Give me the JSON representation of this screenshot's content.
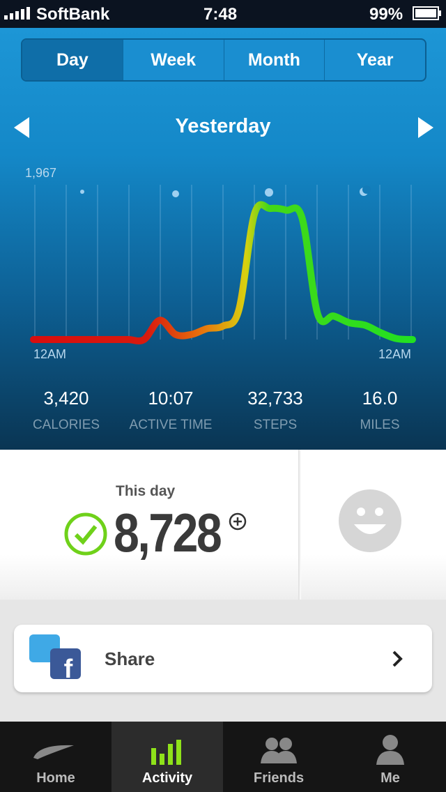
{
  "status_bar": {
    "carrier": "SoftBank",
    "time": "7:48",
    "battery": "99%"
  },
  "tabs": [
    "Day",
    "Week",
    "Month",
    "Year"
  ],
  "date_label": "Yesterday",
  "chart": {
    "type": "line",
    "max_label": "1,967",
    "ylim": [
      0,
      1967
    ],
    "x_labels": [
      "12AM",
      "12AM"
    ],
    "values": [
      0,
      0,
      0,
      0,
      0,
      0,
      0,
      0,
      230,
      60,
      60,
      130,
      160,
      350,
      1500,
      1560,
      1540,
      1450,
      300,
      280,
      200,
      170,
      80,
      10,
      0
    ]
  },
  "stats": [
    {
      "value": "3,420",
      "label": "CALORIES"
    },
    {
      "value": "10:07",
      "label": "ACTIVE TIME"
    },
    {
      "value": "32,733",
      "label": "STEPS"
    },
    {
      "value": "16.0",
      "label": "MILES"
    }
  ],
  "goal": {
    "caption": "This day",
    "value": "8,728"
  },
  "share": "Share",
  "tab_bar": [
    "Home",
    "Activity",
    "Friends",
    "Me"
  ]
}
